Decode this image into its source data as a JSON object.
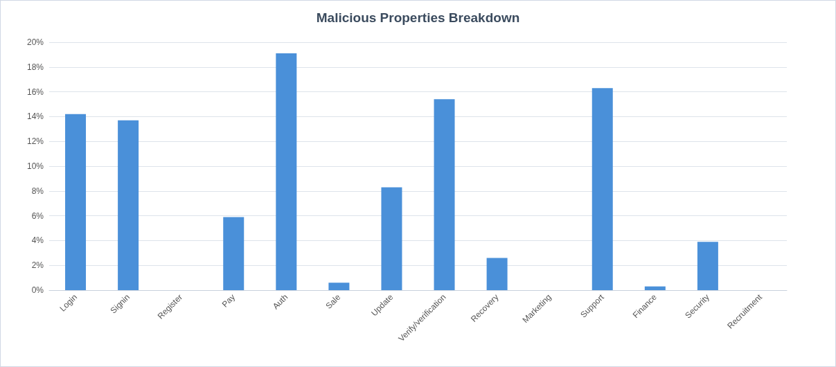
{
  "chart_data": {
    "type": "bar",
    "title": "Malicious Properties Breakdown",
    "categories": [
      "Login",
      "Signin",
      "Register",
      "Pay",
      "Auth",
      "Sale",
      "Update",
      "Verify/verification",
      "Recovery",
      "Marketing",
      "Support",
      "Finance",
      "Security",
      "Recruitment"
    ],
    "values": [
      14.2,
      13.7,
      0,
      5.9,
      19.1,
      0.6,
      8.3,
      15.4,
      2.6,
      0,
      16.3,
      0.3,
      3.9,
      0
    ],
    "color": "#4a90d9",
    "ylim": [
      0,
      20
    ],
    "yticks": [
      {
        "value": 0,
        "label": "0%"
      },
      {
        "value": 2,
        "label": "2%"
      },
      {
        "value": 4,
        "label": "4%"
      },
      {
        "value": 6,
        "label": "6%"
      },
      {
        "value": 8,
        "label": "8%"
      },
      {
        "value": 10,
        "label": "10%"
      },
      {
        "value": 12,
        "label": "12%"
      },
      {
        "value": 14,
        "label": "14%"
      },
      {
        "value": 16,
        "label": "16%"
      },
      {
        "value": 18,
        "label": "18%"
      },
      {
        "value": 20,
        "label": "20%"
      }
    ],
    "grid": "y"
  }
}
